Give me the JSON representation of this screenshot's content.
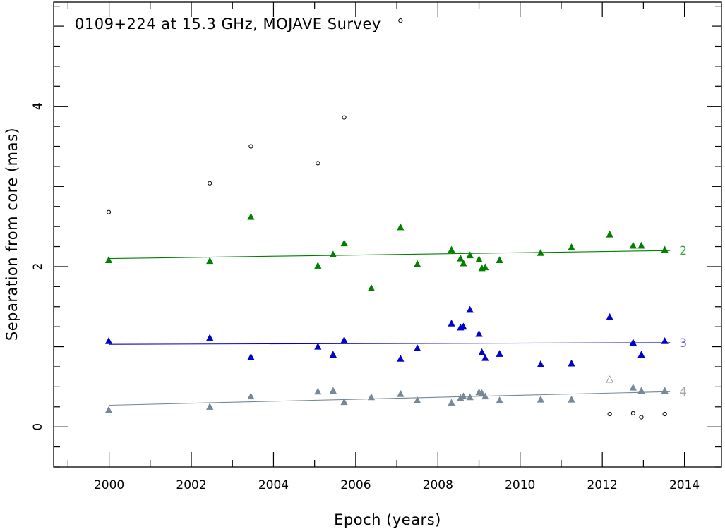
{
  "chart_data": {
    "type": "scatter",
    "title": "0109+224 at 15.3 GHz, MOJAVE Survey",
    "xlabel": "Epoch (years)",
    "ylabel": "Separation from core (mas)",
    "xlim": [
      1998.65,
      2014.9
    ],
    "ylim": [
      -0.5,
      5.3
    ],
    "x_ticks": [
      2000,
      2002,
      2004,
      2006,
      2008,
      2010,
      2012,
      2014
    ],
    "x_tick_labels": [
      "2000",
      "2002",
      "2004",
      "2006",
      "2008",
      "2010",
      "2012",
      "2014"
    ],
    "y_ticks": [
      0,
      2,
      4
    ],
    "y_tick_labels": [
      "0",
      "2",
      "4"
    ],
    "grid": false,
    "series": [
      {
        "name": "2",
        "color": "#008000",
        "marker": "filled-triangle",
        "x": [
          1999.99,
          2002.45,
          2003.45,
          2005.08,
          2005.45,
          2005.72,
          2006.38,
          2007.09,
          2007.5,
          2008.33,
          2008.55,
          2008.62,
          2008.78,
          2009.0,
          2009.07,
          2009.15,
          2009.5,
          2010.5,
          2011.25,
          2012.18,
          2012.75,
          2012.95,
          2013.52
        ],
        "y": [
          2.08,
          2.07,
          2.62,
          2.01,
          2.15,
          2.29,
          1.73,
          2.49,
          2.03,
          2.21,
          2.1,
          2.04,
          2.14,
          2.09,
          1.98,
          1.99,
          2.08,
          2.17,
          2.24,
          2.4,
          2.26,
          2.26,
          2.21
        ],
        "fit": {
          "x": [
            2000.0,
            2013.65
          ],
          "y": [
            2.1,
            2.2
          ]
        }
      },
      {
        "name": "3",
        "color": "#0000cc",
        "marker": "filled-triangle",
        "x": [
          1999.99,
          2002.45,
          2003.45,
          2005.08,
          2005.45,
          2005.72,
          2007.09,
          2007.5,
          2008.33,
          2008.55,
          2008.62,
          2008.78,
          2009.0,
          2009.07,
          2009.15,
          2009.5,
          2010.5,
          2011.25,
          2012.18,
          2012.75,
          2012.95,
          2013.52
        ],
        "y": [
          1.07,
          1.11,
          0.87,
          1.0,
          0.9,
          1.08,
          0.85,
          0.98,
          1.29,
          1.24,
          1.25,
          1.46,
          1.16,
          0.93,
          0.86,
          0.91,
          0.78,
          0.79,
          1.37,
          1.05,
          0.9,
          1.07
        ],
        "fit": {
          "x": [
            2000.0,
            2013.65
          ],
          "y": [
            1.03,
            1.05
          ]
        }
      },
      {
        "name": "4",
        "color": "#778899",
        "marker": "filled-triangle",
        "x": [
          1999.99,
          2002.45,
          2003.45,
          2005.08,
          2005.45,
          2005.72,
          2006.38,
          2007.09,
          2007.5,
          2008.33,
          2008.55,
          2008.62,
          2008.78,
          2009.0,
          2009.07,
          2009.15,
          2009.5,
          2010.5,
          2011.25,
          2012.75,
          2012.95,
          2013.52
        ],
        "y": [
          0.21,
          0.25,
          0.38,
          0.44,
          0.45,
          0.31,
          0.37,
          0.41,
          0.33,
          0.3,
          0.36,
          0.38,
          0.37,
          0.43,
          0.42,
          0.38,
          0.33,
          0.34,
          0.34,
          0.49,
          0.45,
          0.45
        ],
        "fit": {
          "x": [
            2000.0,
            2013.65
          ],
          "y": [
            0.27,
            0.44
          ]
        }
      },
      {
        "name": "",
        "color": "#999999",
        "marker": "open-triangle",
        "x": [
          2012.18
        ],
        "y": [
          0.59
        ]
      },
      {
        "name": "",
        "color": "#000000",
        "marker": "open-circle",
        "x": [
          1999.99,
          2002.45,
          2003.45,
          2005.08,
          2005.72,
          2007.09,
          2012.18,
          2012.75,
          2012.95,
          2013.52
        ],
        "y": [
          2.68,
          3.04,
          3.5,
          3.29,
          3.86,
          5.07,
          0.16,
          0.17,
          0.12,
          0.16
        ]
      }
    ]
  }
}
